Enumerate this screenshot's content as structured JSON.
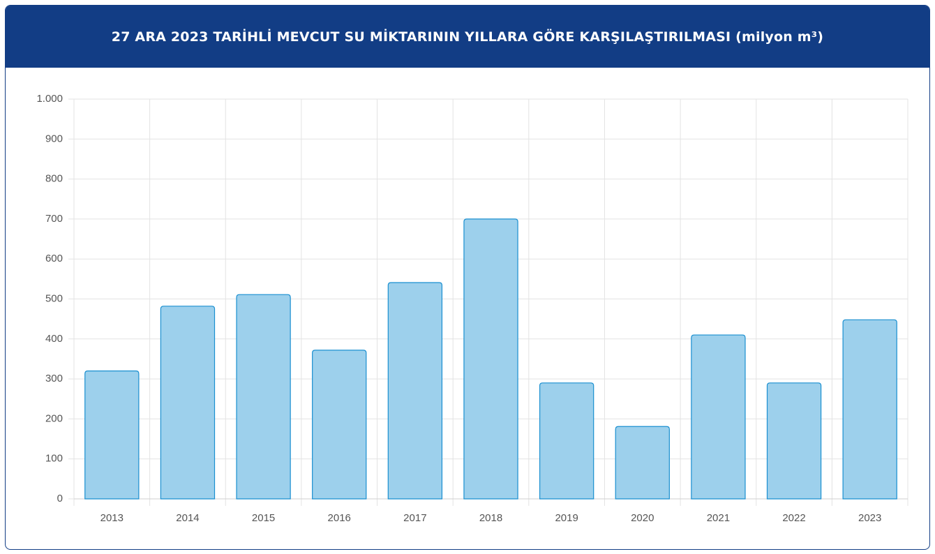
{
  "chart_data": {
    "type": "bar",
    "title": "27 ARA 2023 TARİHLİ MEVCUT SU MİKTARININ YILLARA GÖRE KARŞILAŞTIRILMASI (milyon m³)",
    "categories": [
      "2013",
      "2014",
      "2015",
      "2016",
      "2017",
      "2018",
      "2019",
      "2020",
      "2021",
      "2022",
      "2023"
    ],
    "values": [
      320,
      482,
      511,
      372,
      541,
      700,
      290,
      181,
      410,
      290,
      448
    ],
    "color": "#9dd0ec",
    "border_color": "#1a8fd0",
    "ylim": [
      0,
      1000
    ],
    "yticks": [
      0,
      100,
      200,
      300,
      400,
      500,
      600,
      700,
      800,
      900,
      {
        "value": 1000,
        "label": "1.000"
      }
    ],
    "grid": true
  }
}
